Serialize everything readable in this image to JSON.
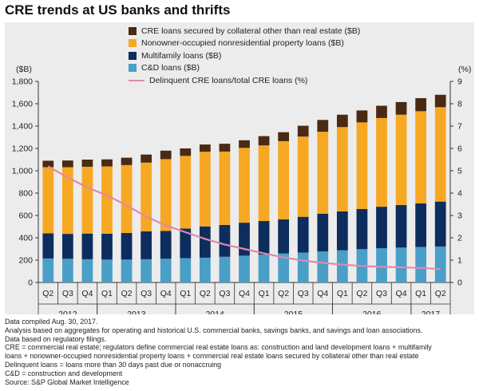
{
  "title": "CRE trends at US banks and thrifts",
  "chart_data": {
    "type": "bar",
    "stacked": true,
    "title": "CRE trends at US banks and thrifts",
    "categories": [
      "Q2",
      "Q3",
      "Q4",
      "Q1",
      "Q2",
      "Q3",
      "Q4",
      "Q1",
      "Q2",
      "Q3",
      "Q4",
      "Q1",
      "Q2",
      "Q3",
      "Q4",
      "Q1",
      "Q2",
      "Q3",
      "Q4",
      "Q1",
      "Q2"
    ],
    "years": [
      {
        "label": "2012",
        "start": 0,
        "end": 2
      },
      {
        "label": "2013",
        "start": 3,
        "end": 6
      },
      {
        "label": "2014",
        "start": 7,
        "end": 10
      },
      {
        "label": "2015",
        "start": 11,
        "end": 14
      },
      {
        "label": "2016",
        "start": 15,
        "end": 18
      },
      {
        "label": "2017",
        "start": 19,
        "end": 20
      }
    ],
    "left_axis": {
      "unit_label": "($B)",
      "ylim": [
        0,
        1800
      ],
      "ticks": [
        "0",
        "200",
        "400",
        "600",
        "800",
        "1,000",
        "1,200",
        "1,400",
        "1,600",
        "1,800"
      ]
    },
    "right_axis": {
      "unit_label": "(%)",
      "ylim": [
        0,
        9
      ],
      "ticks": [
        "0",
        "1",
        "2",
        "3",
        "4",
        "5",
        "6",
        "7",
        "8",
        "9"
      ]
    },
    "series": [
      {
        "name": "C&D loans ($B)",
        "color": "#4a9fc8",
        "axis": "left",
        "type": "bar",
        "values": [
          215,
          212,
          208,
          205,
          205,
          208,
          212,
          218,
          222,
          230,
          240,
          250,
          260,
          268,
          278,
          288,
          298,
          306,
          312,
          318,
          322
        ]
      },
      {
        "name": "Multifamily loans ($B)",
        "color": "#0d2d5e",
        "axis": "left",
        "type": "bar",
        "values": [
          225,
          223,
          230,
          232,
          238,
          250,
          250,
          265,
          280,
          285,
          295,
          300,
          305,
          320,
          338,
          348,
          360,
          372,
          382,
          390,
          402
        ]
      },
      {
        "name": "Nonowner-occupied nonresidential property loans ($B)",
        "color": "#f7a823",
        "axis": "left",
        "type": "bar",
        "values": [
          592,
          597,
          598,
          602,
          608,
          615,
          642,
          650,
          668,
          657,
          670,
          677,
          700,
          718,
          733,
          755,
          775,
          794,
          808,
          825,
          845
        ]
      },
      {
        "name": "CRE loans secured by collateral other than real estate ($B)",
        "color": "#4a2a12",
        "axis": "left",
        "type": "bar",
        "values": [
          58,
          60,
          64,
          63,
          66,
          72,
          76,
          67,
          65,
          70,
          68,
          83,
          80,
          97,
          106,
          111,
          107,
          110,
          113,
          117,
          111
        ]
      },
      {
        "name": "Delinquent CRE loans/total CRE loans (%)",
        "color": "#e288ad",
        "axis": "right",
        "type": "line",
        "values": [
          5.2,
          4.7,
          4.25,
          3.9,
          3.45,
          2.95,
          2.55,
          2.25,
          1.95,
          1.7,
          1.5,
          1.3,
          1.12,
          0.98,
          0.88,
          0.8,
          0.74,
          0.7,
          0.68,
          0.65,
          0.6
        ]
      }
    ],
    "legend_order": [
      3,
      2,
      1,
      0,
      4
    ],
    "legend_placement": "top-center",
    "grid": false
  },
  "notes": [
    "Data compiled Aug. 30, 2017.",
    "Analysis based on aggregates for operating and historical U.S. commercial banks, savings banks, and savings and loan associations.",
    "Data based on regulatory filings.",
    "CRE = commercial real estate; regulators define commercial real estate loans as: construction and land development loans + multifamily",
    "loans + nonowner-occupied nonresidential property loans + commercial real estate loans secured by collateral other than real estate",
    "Delinquent loans = loans more than 30 days past due or nonaccruing",
    "C&D = construction and development",
    "Source: S&P Global Market Intelligence"
  ]
}
